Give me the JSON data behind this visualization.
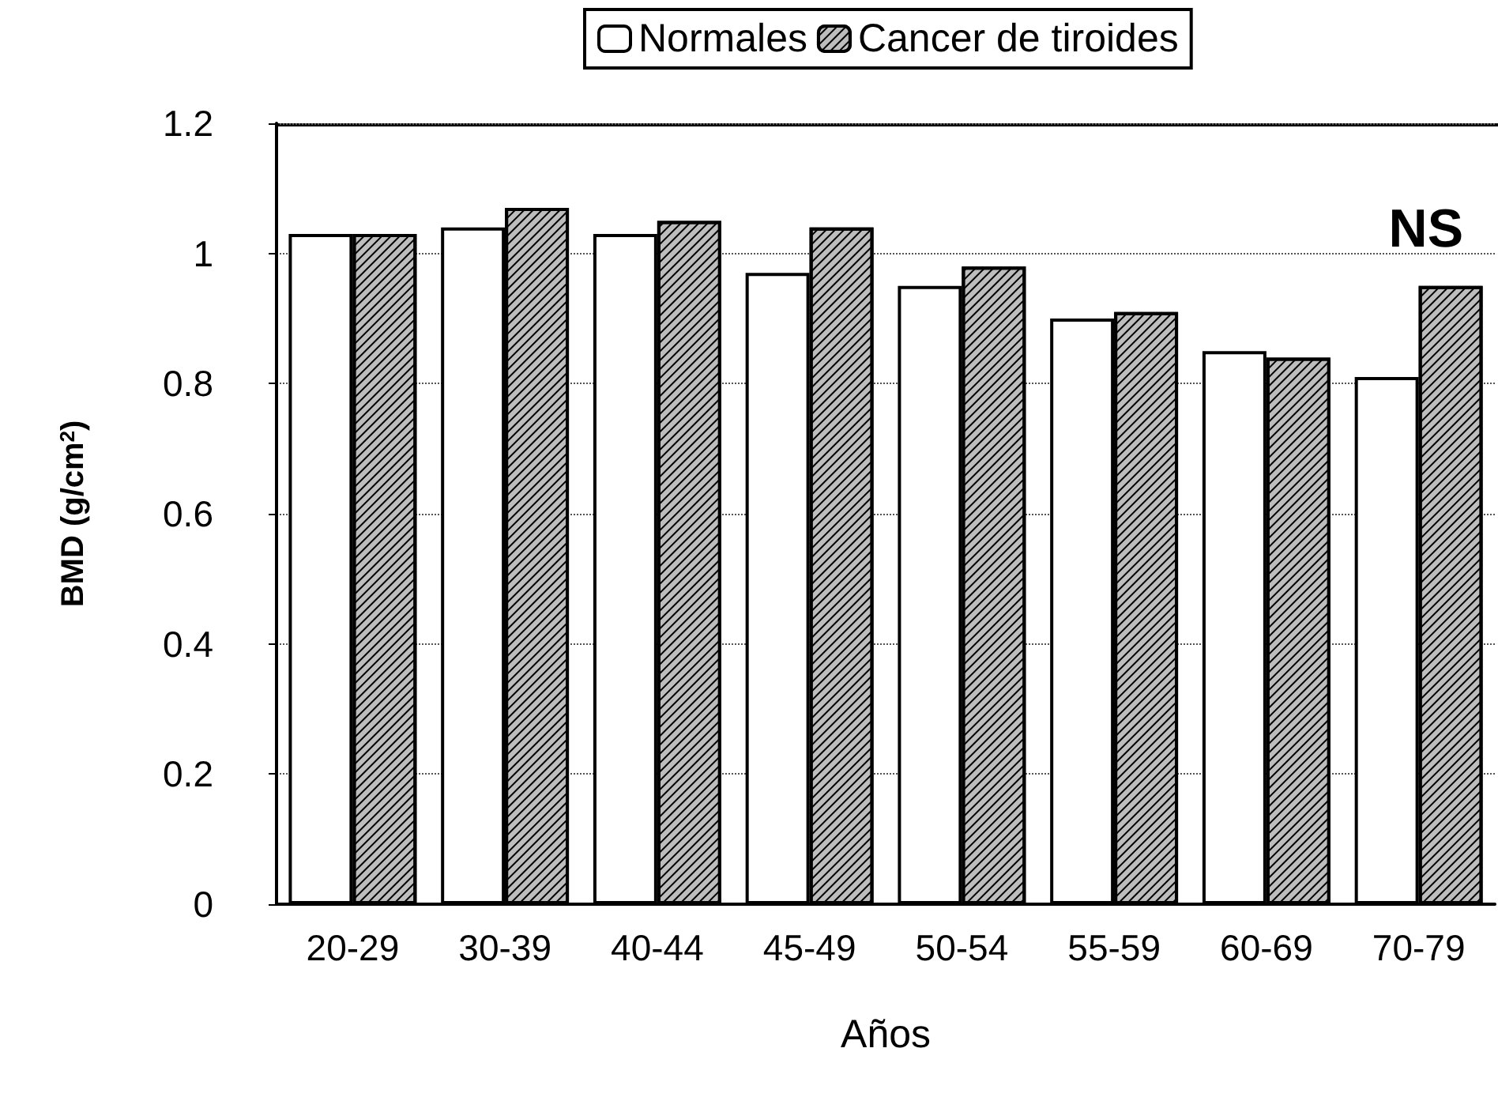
{
  "chart_data": {
    "type": "bar",
    "xlabel": "Años",
    "ylabel": "BMD (g/cm$^{2}$)",
    "annotations": [
      "NS"
    ],
    "categories": [
      "20-29",
      "30-39",
      "40-44",
      "45-49",
      "50-54",
      "55-59",
      "60-69",
      "70-79"
    ],
    "series": [
      {
        "name": "Normales",
        "color": "#ffffff",
        "values": [
          1.03,
          1.04,
          1.03,
          0.97,
          0.95,
          0.9,
          0.85,
          0.81
        ]
      },
      {
        "name": "Cancer de tiroides",
        "color": "#bdbdbd",
        "values": [
          1.03,
          1.07,
          1.05,
          1.04,
          0.98,
          0.91,
          0.84,
          0.95
        ]
      }
    ],
    "ylim": [
      0,
      1.2
    ],
    "yticks": [
      0,
      0.2,
      0.4,
      0.6,
      0.8,
      1,
      1.2
    ],
    "grid": "y",
    "legend": "top"
  }
}
